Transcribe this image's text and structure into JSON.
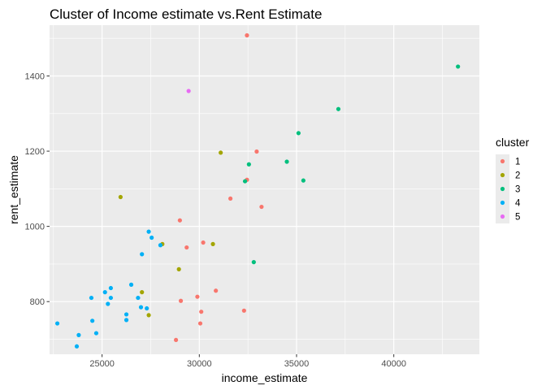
{
  "chart_data": {
    "type": "scatter",
    "title": "Cluster of Income estimate vs.Rent Estimate",
    "xlabel": "income_estimate",
    "ylabel": "rent_estimate",
    "xlim": [
      22300,
      44400
    ],
    "ylim": [
      660,
      1535
    ],
    "x_ticks": [
      {
        "value": 25000,
        "label": "25000"
      },
      {
        "value": 30000,
        "label": "30000"
      },
      {
        "value": 35000,
        "label": "35000"
      },
      {
        "value": 40000,
        "label": "40000"
      }
    ],
    "y_ticks": [
      {
        "value": 800,
        "label": "800"
      },
      {
        "value": 1000,
        "label": "1000"
      },
      {
        "value": 1200,
        "label": "1200"
      },
      {
        "value": 1400,
        "label": "1400"
      }
    ],
    "grid": true,
    "legend_position": "right",
    "legend": {
      "title": "cluster",
      "entries": [
        {
          "label": "1",
          "color": "#F8766D"
        },
        {
          "label": "2",
          "color": "#A3A500"
        },
        {
          "label": "3",
          "color": "#00BF7D"
        },
        {
          "label": "4",
          "color": "#00B0F6"
        },
        {
          "label": "5",
          "color": "#E76BF3"
        }
      ]
    },
    "series": [
      {
        "name": "1",
        "color": "#F8766D",
        "points": [
          {
            "x": 32450,
            "y": 1508
          },
          {
            "x": 32950,
            "y": 1199
          },
          {
            "x": 32450,
            "y": 1124
          },
          {
            "x": 31600,
            "y": 1074
          },
          {
            "x": 33200,
            "y": 1052
          },
          {
            "x": 29000,
            "y": 1016
          },
          {
            "x": 30200,
            "y": 957
          },
          {
            "x": 29350,
            "y": 944
          },
          {
            "x": 30850,
            "y": 829
          },
          {
            "x": 29900,
            "y": 813
          },
          {
            "x": 29050,
            "y": 802
          },
          {
            "x": 32300,
            "y": 776
          },
          {
            "x": 30100,
            "y": 773
          },
          {
            "x": 30050,
            "y": 742
          },
          {
            "x": 28800,
            "y": 698
          }
        ]
      },
      {
        "name": "2",
        "color": "#A3A500",
        "points": [
          {
            "x": 31100,
            "y": 1196
          },
          {
            "x": 25950,
            "y": 1078
          },
          {
            "x": 28100,
            "y": 953
          },
          {
            "x": 30700,
            "y": 953
          },
          {
            "x": 28950,
            "y": 886
          },
          {
            "x": 27050,
            "y": 825
          },
          {
            "x": 27400,
            "y": 764
          }
        ]
      },
      {
        "name": "3",
        "color": "#00BF7D",
        "points": [
          {
            "x": 43300,
            "y": 1425
          },
          {
            "x": 37150,
            "y": 1312
          },
          {
            "x": 35100,
            "y": 1248
          },
          {
            "x": 34500,
            "y": 1172
          },
          {
            "x": 32550,
            "y": 1165
          },
          {
            "x": 35350,
            "y": 1122
          },
          {
            "x": 32350,
            "y": 1120
          },
          {
            "x": 32800,
            "y": 905
          }
        ]
      },
      {
        "name": "4",
        "color": "#00B0F6",
        "points": [
          {
            "x": 27400,
            "y": 986
          },
          {
            "x": 27550,
            "y": 970
          },
          {
            "x": 28000,
            "y": 950
          },
          {
            "x": 27050,
            "y": 926
          },
          {
            "x": 26500,
            "y": 845
          },
          {
            "x": 25450,
            "y": 836
          },
          {
            "x": 25150,
            "y": 825
          },
          {
            "x": 24450,
            "y": 810
          },
          {
            "x": 25450,
            "y": 810
          },
          {
            "x": 26850,
            "y": 810
          },
          {
            "x": 25300,
            "y": 794
          },
          {
            "x": 27000,
            "y": 785
          },
          {
            "x": 27300,
            "y": 782
          },
          {
            "x": 26250,
            "y": 766
          },
          {
            "x": 26250,
            "y": 751
          },
          {
            "x": 24500,
            "y": 749
          },
          {
            "x": 22700,
            "y": 742
          },
          {
            "x": 24700,
            "y": 716
          },
          {
            "x": 23800,
            "y": 711
          },
          {
            "x": 23700,
            "y": 681
          }
        ]
      },
      {
        "name": "5",
        "color": "#E76BF3",
        "points": [
          {
            "x": 29450,
            "y": 1360
          }
        ]
      }
    ]
  }
}
